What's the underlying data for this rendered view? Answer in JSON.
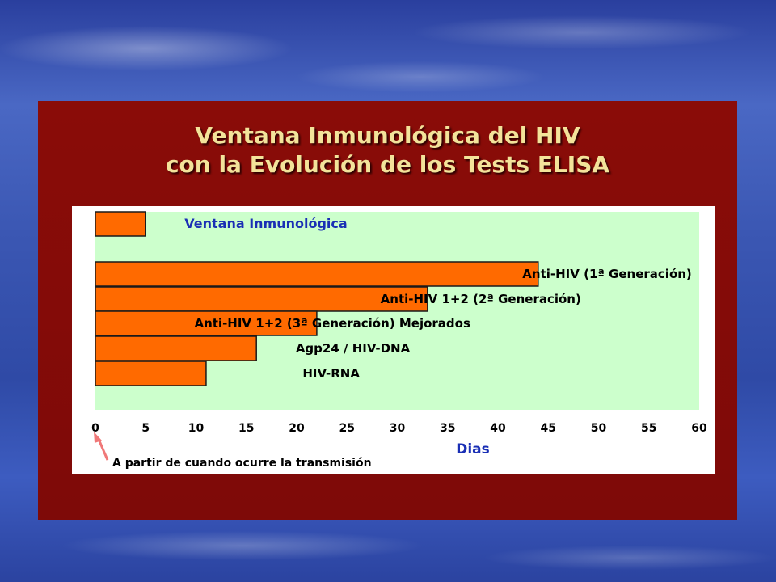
{
  "slide": {
    "title_line1": "Ventana Inmunológica del HIV",
    "title_line2": "con la Evolución de los Tests ELISA"
  },
  "chart_data": {
    "type": "bar",
    "orientation": "horizontal",
    "categories": [
      "Ventana Inmunológica",
      "Anti-HIV (1ª Generación)",
      "Anti-HIV 1+2 (2ª Generación)",
      "Anti-HIV 1+2 (3ª Generación) Mejorados",
      "Agp24 / HIV-DNA",
      "HIV-RNA"
    ],
    "values": [
      5,
      44,
      33,
      22,
      16,
      11
    ],
    "xlabel": "Dias",
    "xlim": [
      0,
      60
    ],
    "xticks": [
      0,
      5,
      10,
      15,
      20,
      25,
      30,
      35,
      40,
      45,
      50,
      55,
      60
    ],
    "grid": false,
    "annotation": "A partir de cuando ocurre la transmisión",
    "colors": {
      "bar_fill": "#ff6a00",
      "bar_stroke": "#1a1a1a",
      "plot_background": "#ccffcc",
      "highlight_label": "#1a2fb5",
      "axis_title": "#1a2fb5",
      "annotation_arrow": "#f07878"
    }
  }
}
